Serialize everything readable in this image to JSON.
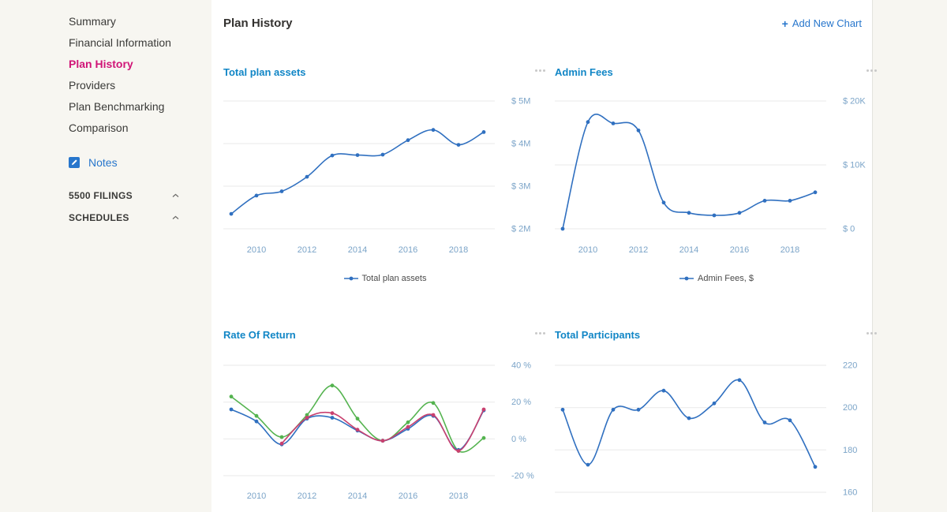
{
  "colors": {
    "accent_blue": "#1186c6",
    "link_blue": "#2776cc",
    "active_pink": "#d01577",
    "axis_label": "#7ba4c8",
    "gridline": "#e9e9e9",
    "line_blue": "#3070c0",
    "line_green": "#54b34f",
    "line_magenta": "#c9406f",
    "sidebar_bg": "#f7f6f1"
  },
  "sidebar": {
    "items": [
      {
        "label": "Summary",
        "active": false
      },
      {
        "label": "Financial Information",
        "active": false
      },
      {
        "label": "Plan History",
        "active": true
      },
      {
        "label": "Providers",
        "active": false
      },
      {
        "label": "Plan Benchmarking",
        "active": false
      },
      {
        "label": "Comparison",
        "active": false
      }
    ],
    "notes": {
      "label": "Notes",
      "icon": "note-edit-icon"
    },
    "sections": [
      {
        "label": "5500 FILINGS",
        "state": "collapsed",
        "icon": "chevron-up-icon"
      },
      {
        "label": "SCHEDULES",
        "state": "collapsed",
        "icon": "chevron-up-icon"
      }
    ]
  },
  "header": {
    "title": "Plan History",
    "add_chart_icon": "+",
    "add_chart_label": "Add New Chart"
  },
  "charts": [
    {
      "title": "Total plan assets",
      "menu_icon": "ellipsis",
      "legend": [
        {
          "label": "Total plan assets",
          "color": "#3070c0"
        }
      ],
      "chart_data": {
        "type": "line",
        "x": [
          2009,
          2010,
          2011,
          2012,
          2013,
          2014,
          2015,
          2016,
          2017,
          2018,
          2019
        ],
        "series": [
          {
            "name": "Total plan assets",
            "color": "#3070c0",
            "values": [
              2.35,
              2.78,
              2.88,
              3.22,
              3.72,
              3.73,
              3.74,
              4.08,
              4.32,
              3.97,
              4.27
            ]
          }
        ],
        "unit": "$M",
        "ylim": [
          2,
          5
        ],
        "yticks": [
          {
            "label": "$ 5M",
            "value": 5
          },
          {
            "label": "$ 4M",
            "value": 4
          },
          {
            "label": "$ 3M",
            "value": 3
          },
          {
            "label": "$ 2M",
            "value": 2
          }
        ],
        "xticks": [
          2010,
          2012,
          2014,
          2016,
          2018
        ],
        "grid": "horizontal"
      }
    },
    {
      "title": "Admin Fees",
      "menu_icon": "ellipsis",
      "legend": [
        {
          "label": "Admin Fees, $",
          "color": "#3070c0"
        }
      ],
      "chart_data": {
        "type": "line",
        "x": [
          2009,
          2010,
          2011,
          2012,
          2013,
          2014,
          2015,
          2016,
          2017,
          2018,
          2019
        ],
        "series": [
          {
            "name": "Admin Fees, $",
            "color": "#3070c0",
            "values": [
              0,
              16.7,
              16.5,
              15.4,
              4.1,
              2.5,
              2.1,
              2.5,
              4.4,
              4.4,
              5.7
            ]
          }
        ],
        "unit": "$K",
        "ylim": [
          0,
          20
        ],
        "yticks": [
          {
            "label": "$ 20K",
            "value": 20
          },
          {
            "label": "$ 10K",
            "value": 10
          },
          {
            "label": "$ 0",
            "value": 0
          }
        ],
        "xticks": [
          2010,
          2012,
          2014,
          2016,
          2018
        ],
        "grid": "horizontal"
      }
    },
    {
      "title": "Rate Of Return",
      "menu_icon": "ellipsis",
      "chart_data": {
        "type": "line",
        "x": [
          2009,
          2010,
          2011,
          2012,
          2013,
          2014,
          2015,
          2016,
          2017,
          2018,
          2019
        ],
        "series": [
          {
            "name": "",
            "id": "series-green",
            "color": "#54b34f",
            "values": [
              23,
              12.5,
              1,
              13,
              29,
              11,
              -1,
              9,
              19.5,
              -6.5,
              0.5
            ]
          },
          {
            "name": "",
            "id": "series-blue",
            "color": "#3070c0",
            "values": [
              16,
              9.5,
              -3,
              11,
              11.5,
              4.5,
              -1,
              5.5,
              12.5,
              -6,
              15.5
            ]
          },
          {
            "name": "",
            "id": "series-magenta",
            "color": "#c9406f",
            "values": [
              null,
              null,
              -2.5,
              11.5,
              14,
              5,
              -1,
              6.5,
              13,
              -6.5,
              16
            ]
          }
        ],
        "unit": "%",
        "ylim": [
          -20,
          40
        ],
        "yticks": [
          {
            "label": "40 %",
            "value": 40
          },
          {
            "label": "20 %",
            "value": 20
          },
          {
            "label": "0 %",
            "value": 0
          },
          {
            "label": "-20 %",
            "value": -20
          }
        ],
        "xticks": [
          2010,
          2012,
          2014,
          2016,
          2018
        ],
        "grid": "horizontal"
      }
    },
    {
      "title": "Total Participants",
      "menu_icon": "ellipsis",
      "chart_data": {
        "type": "line",
        "x": [
          2009,
          2010,
          2011,
          2012,
          2013,
          2014,
          2015,
          2016,
          2017,
          2018,
          2019
        ],
        "series": [
          {
            "name": "Total Participants",
            "color": "#3070c0",
            "values": [
              199,
              173,
              199,
              199,
              208,
              195,
              202,
              213,
              193,
              194,
              172
            ]
          }
        ],
        "unit": "participants",
        "ylim": [
          160,
          220
        ],
        "yticks": [
          {
            "label": "220",
            "value": 220
          },
          {
            "label": "200",
            "value": 200
          },
          {
            "label": "180",
            "value": 180
          },
          {
            "label": "160",
            "value": 160
          }
        ],
        "xticks": [],
        "grid": "horizontal"
      }
    }
  ]
}
